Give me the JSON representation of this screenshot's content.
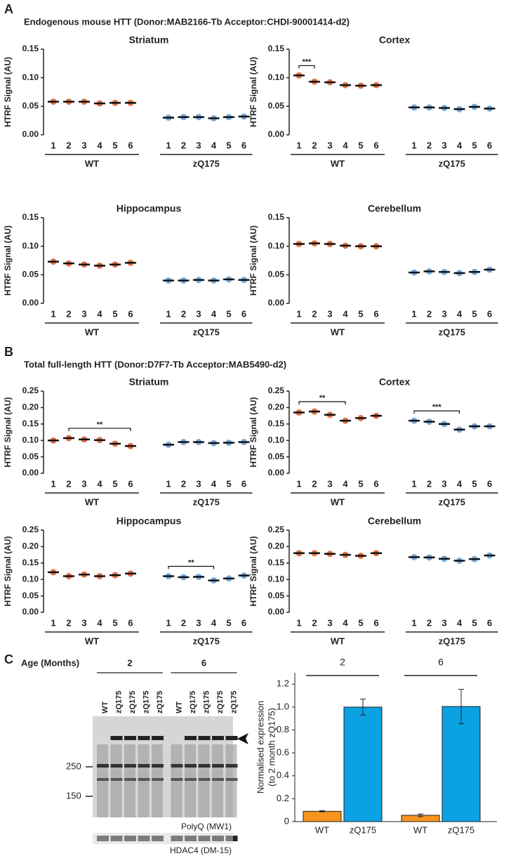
{
  "panels": [
    {
      "label": "A",
      "title": "Endogenous mouse HTT (Donor:MAB2166-Tb Acceptor:CHDI-90001414-d2)"
    },
    {
      "label": "B",
      "title": "Total full-length HTT (Donor:D7F7-Tb Acceptor:MAB5490-d2)"
    },
    {
      "label": "C"
    }
  ],
  "chart_data": [
    {
      "type": "dot",
      "title": "Striatum",
      "ylabel": "HTRF Signal (AU)",
      "categories": [
        "1",
        "2",
        "3",
        "4",
        "5",
        "6"
      ],
      "series": [
        {
          "name": "WT",
          "color": "#e0622e",
          "values": [
            0.058,
            0.058,
            0.058,
            0.055,
            0.056,
            0.056
          ]
        },
        {
          "name": "zQ175",
          "color": "#6a9fd4",
          "values": [
            0.03,
            0.031,
            0.031,
            0.029,
            0.031,
            0.032
          ]
        }
      ],
      "ylim": [
        0,
        0.15
      ],
      "yticks": [
        {
          "value": 0,
          "label": "0.00"
        },
        {
          "value": 0.05,
          "label": "0.05"
        },
        {
          "value": 0.1,
          "label": "0.10"
        },
        {
          "value": 0.15,
          "label": "0.15"
        }
      ],
      "annotations": []
    },
    {
      "type": "dot",
      "title": "Cortex",
      "ylabel": "HTRF Signal (AU)",
      "categories": [
        "1",
        "2",
        "3",
        "4",
        "5",
        "6"
      ],
      "series": [
        {
          "name": "WT",
          "color": "#e0622e",
          "values": [
            0.104,
            0.093,
            0.092,
            0.087,
            0.086,
            0.087
          ]
        },
        {
          "name": "zQ175",
          "color": "#6a9fd4",
          "values": [
            0.048,
            0.048,
            0.047,
            0.045,
            0.049,
            0.046
          ]
        }
      ],
      "ylim": [
        0,
        0.15
      ],
      "yticks": [
        {
          "value": 0,
          "label": "0.00"
        },
        {
          "value": 0.05,
          "label": "0.05"
        },
        {
          "value": 0.1,
          "label": "0.10"
        },
        {
          "value": 0.15,
          "label": "0.15"
        }
      ],
      "annotations": [
        {
          "text": "***",
          "series": "WT",
          "categories": [
            "1",
            "2"
          ]
        }
      ]
    },
    {
      "type": "dot",
      "title": "Hippocampus",
      "ylabel": "HTRF Signal (AU)",
      "categories": [
        "1",
        "2",
        "3",
        "4",
        "5",
        "6"
      ],
      "series": [
        {
          "name": "WT",
          "color": "#e0622e",
          "values": [
            0.073,
            0.07,
            0.068,
            0.066,
            0.068,
            0.071
          ]
        },
        {
          "name": "zQ175",
          "color": "#6a9fd4",
          "values": [
            0.04,
            0.04,
            0.041,
            0.04,
            0.042,
            0.041
          ]
        }
      ],
      "ylim": [
        0,
        0.15
      ],
      "yticks": [
        {
          "value": 0,
          "label": "0.00"
        },
        {
          "value": 0.05,
          "label": "0.05"
        },
        {
          "value": 0.1,
          "label": "0.10"
        },
        {
          "value": 0.15,
          "label": "0.15"
        }
      ],
      "annotations": []
    },
    {
      "type": "dot",
      "title": "Cerebellum",
      "ylabel": "HTRF Signal (AU)",
      "categories": [
        "1",
        "2",
        "3",
        "4",
        "5",
        "6"
      ],
      "series": [
        {
          "name": "WT",
          "color": "#e0622e",
          "values": [
            0.104,
            0.105,
            0.104,
            0.101,
            0.1,
            0.1
          ]
        },
        {
          "name": "zQ175",
          "color": "#6a9fd4",
          "values": [
            0.054,
            0.056,
            0.055,
            0.053,
            0.055,
            0.059
          ]
        }
      ],
      "ylim": [
        0,
        0.15
      ],
      "yticks": [
        {
          "value": 0,
          "label": "0.00"
        },
        {
          "value": 0.05,
          "label": "0.05"
        },
        {
          "value": 0.1,
          "label": "0.10"
        },
        {
          "value": 0.15,
          "label": "0.15"
        }
      ],
      "annotations": []
    },
    {
      "type": "dot",
      "title": "Striatum",
      "ylabel": "HTRF Signal (AU)",
      "categories": [
        "1",
        "2",
        "3",
        "4",
        "5",
        "6"
      ],
      "series": [
        {
          "name": "WT",
          "color": "#e0622e",
          "values": [
            0.1,
            0.107,
            0.103,
            0.101,
            0.09,
            0.083
          ]
        },
        {
          "name": "zQ175",
          "color": "#6a9fd4",
          "values": [
            0.087,
            0.095,
            0.095,
            0.092,
            0.093,
            0.095
          ]
        }
      ],
      "ylim": [
        0,
        0.25
      ],
      "yticks": [
        {
          "value": 0,
          "label": "0.00"
        },
        {
          "value": 0.05,
          "label": "0.05"
        },
        {
          "value": 0.1,
          "label": "0.10"
        },
        {
          "value": 0.15,
          "label": "0.15"
        },
        {
          "value": 0.2,
          "label": "0.20"
        },
        {
          "value": 0.25,
          "label": "0.25"
        }
      ],
      "annotations": [
        {
          "text": "**",
          "series": "WT",
          "categories": [
            "2",
            "6"
          ]
        }
      ]
    },
    {
      "type": "dot",
      "title": "Cortex",
      "ylabel": "HTRF Signal (AU)",
      "categories": [
        "1",
        "2",
        "3",
        "4",
        "5",
        "6"
      ],
      "series": [
        {
          "name": "WT",
          "color": "#e0622e",
          "values": [
            0.185,
            0.188,
            0.178,
            0.16,
            0.168,
            0.175
          ]
        },
        {
          "name": "zQ175",
          "color": "#6a9fd4",
          "values": [
            0.16,
            0.157,
            0.15,
            0.133,
            0.143,
            0.143
          ]
        }
      ],
      "ylim": [
        0,
        0.25
      ],
      "yticks": [
        {
          "value": 0,
          "label": "0.00"
        },
        {
          "value": 0.05,
          "label": "0.05"
        },
        {
          "value": 0.1,
          "label": "0.10"
        },
        {
          "value": 0.15,
          "label": "0.15"
        },
        {
          "value": 0.2,
          "label": "0.20"
        },
        {
          "value": 0.25,
          "label": "0.25"
        }
      ],
      "annotations": [
        {
          "text": "**",
          "series": "WT",
          "categories": [
            "1",
            "4"
          ]
        },
        {
          "text": "***",
          "series": "zQ175",
          "categories": [
            "1",
            "4"
          ]
        }
      ]
    },
    {
      "type": "dot",
      "title": "Hippocampus",
      "ylabel": "HTRF Signal (AU)",
      "categories": [
        "1",
        "2",
        "3",
        "4",
        "5",
        "6"
      ],
      "series": [
        {
          "name": "WT",
          "color": "#e0622e",
          "values": [
            0.122,
            0.11,
            0.115,
            0.11,
            0.113,
            0.118
          ]
        },
        {
          "name": "zQ175",
          "color": "#6a9fd4",
          "values": [
            0.11,
            0.107,
            0.108,
            0.097,
            0.103,
            0.112
          ]
        }
      ],
      "ylim": [
        0,
        0.25
      ],
      "yticks": [
        {
          "value": 0,
          "label": "0.00"
        },
        {
          "value": 0.05,
          "label": "0.05"
        },
        {
          "value": 0.1,
          "label": "0.10"
        },
        {
          "value": 0.15,
          "label": "0.15"
        },
        {
          "value": 0.2,
          "label": "0.20"
        },
        {
          "value": 0.25,
          "label": "0.25"
        }
      ],
      "annotations": [
        {
          "text": "**",
          "series": "zQ175",
          "categories": [
            "1",
            "4"
          ]
        }
      ]
    },
    {
      "type": "dot",
      "title": "Cerebellum",
      "ylabel": "HTRF Signal (AU)",
      "categories": [
        "1",
        "2",
        "3",
        "4",
        "5",
        "6"
      ],
      "series": [
        {
          "name": "WT",
          "color": "#e0622e",
          "values": [
            0.18,
            0.18,
            0.178,
            0.175,
            0.172,
            0.18
          ]
        },
        {
          "name": "zQ175",
          "color": "#6a9fd4",
          "values": [
            0.168,
            0.167,
            0.163,
            0.157,
            0.162,
            0.173
          ]
        }
      ],
      "ylim": [
        0,
        0.25
      ],
      "yticks": [
        {
          "value": 0,
          "label": "0.00"
        },
        {
          "value": 0.05,
          "label": "0.05"
        },
        {
          "value": 0.1,
          "label": "0.10"
        },
        {
          "value": 0.15,
          "label": "0.15"
        },
        {
          "value": 0.2,
          "label": "0.20"
        },
        {
          "value": 0.25,
          "label": "0.25"
        }
      ],
      "annotations": []
    },
    {
      "type": "bar",
      "ylabel": [
        "Normalised expression",
        "(to 2 month zQ175)"
      ],
      "colors": [
        "#f7941d",
        "#0aa2e3"
      ],
      "groups": [
        {
          "name": "2",
          "categories": [
            "WT",
            "zQ175"
          ],
          "values": [
            0.09,
            1.0
          ],
          "errors": [
            0.005,
            0.07
          ]
        },
        {
          "name": "6",
          "categories": [
            "WT",
            "zQ175"
          ],
          "values": [
            0.055,
            1.005
          ],
          "errors": [
            0.012,
            0.15
          ]
        }
      ],
      "ylim": [
        0,
        1.3
      ],
      "yticks": [
        0,
        0.2,
        0.4,
        0.6,
        0.8,
        {
          "value": 1,
          "label": "1.0"
        },
        1.2
      ]
    }
  ],
  "blot": {
    "age_label": "Age (Months)",
    "ages": [
      "2",
      "6"
    ],
    "lanes": [
      "WT",
      "zQ175",
      "zQ175",
      "zQ175",
      "zQ175",
      "WT",
      "zQ175",
      "zQ175",
      "zQ175",
      "zQ175"
    ],
    "markers": [
      250,
      150
    ],
    "stains": [
      "PolyQ (MW1)",
      "HDAC4 (DM-15)"
    ]
  }
}
